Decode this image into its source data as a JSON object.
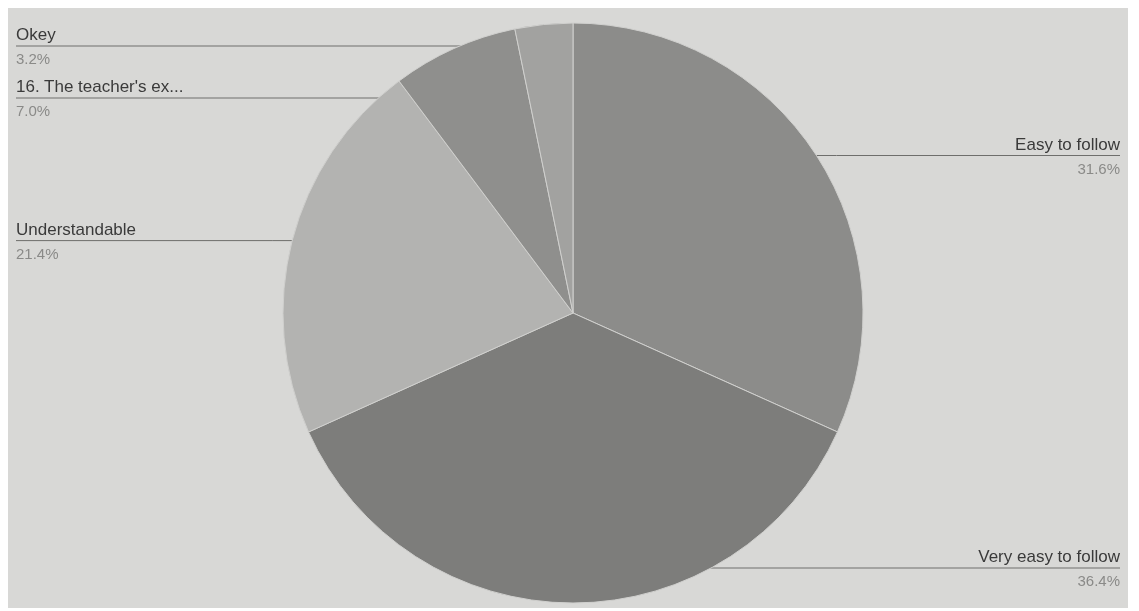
{
  "chart_data": {
    "type": "pie",
    "categories": [
      "Easy to follow",
      "Very easy to follow",
      "Understandable",
      "16. The  teacher's ex...",
      "Okey"
    ],
    "values": [
      31.6,
      36.4,
      21.4,
      7.0,
      3.2
    ],
    "value_labels": [
      "31.6%",
      "36.4%",
      "21.4%",
      "7.0%",
      "3.2%"
    ],
    "colors": [
      "#8c8c8a",
      "#7d7d7b",
      "#b3b3b1",
      "#8f8f8d",
      "#a2a2a0"
    ],
    "legend": false
  }
}
